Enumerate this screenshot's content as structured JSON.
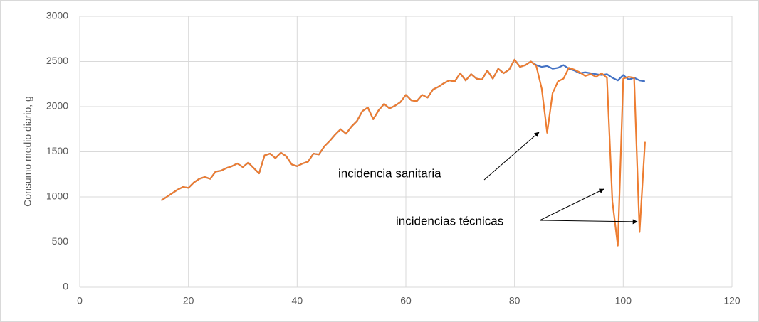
{
  "chart_data": {
    "type": "line",
    "y_label": "Consumo medio diario, g",
    "annotations": [
      "incidencia sanitaria",
      "incidencias técnicas"
    ],
    "x": [
      15,
      16,
      17,
      18,
      19,
      20,
      21,
      22,
      23,
      24,
      25,
      26,
      27,
      28,
      29,
      30,
      31,
      32,
      33,
      34,
      35,
      36,
      37,
      38,
      39,
      40,
      41,
      42,
      43,
      44,
      45,
      46,
      47,
      48,
      49,
      50,
      51,
      52,
      53,
      54,
      55,
      56,
      57,
      58,
      59,
      60,
      61,
      62,
      63,
      64,
      65,
      66,
      67,
      68,
      69,
      70,
      71,
      72,
      73,
      74,
      75,
      76,
      77,
      78,
      79,
      80,
      81,
      82,
      83,
      84,
      85,
      86,
      87,
      88,
      89,
      90,
      91,
      92,
      93,
      94,
      95,
      96,
      97,
      98,
      99,
      100,
      101,
      102,
      103,
      104
    ],
    "series": [
      {
        "color": "#4472c4",
        "values": [
          960,
          1000,
          1040,
          1080,
          1110,
          1100,
          1160,
          1200,
          1220,
          1200,
          1280,
          1290,
          1320,
          1340,
          1370,
          1330,
          1380,
          1320,
          1260,
          1460,
          1480,
          1430,
          1490,
          1450,
          1360,
          1340,
          1370,
          1390,
          1480,
          1470,
          1560,
          1620,
          1690,
          1750,
          1700,
          1780,
          1840,
          1950,
          1990,
          1860,
          1960,
          2030,
          1980,
          2010,
          2050,
          2130,
          2070,
          2060,
          2130,
          2100,
          2190,
          2220,
          2260,
          2290,
          2280,
          2370,
          2290,
          2360,
          2310,
          2300,
          2400,
          2310,
          2420,
          2370,
          2410,
          2520,
          2440,
          2460,
          2500,
          2460,
          2440,
          2450,
          2420,
          2430,
          2460,
          2420,
          2400,
          2370,
          2380,
          2370,
          2360,
          2350,
          2360,
          2320,
          2290,
          2350,
          2300,
          2320,
          2290,
          2280
        ]
      },
      {
        "color": "#ed7d31",
        "values": [
          960,
          1000,
          1040,
          1080,
          1110,
          1100,
          1160,
          1200,
          1220,
          1200,
          1280,
          1290,
          1320,
          1340,
          1370,
          1330,
          1380,
          1320,
          1260,
          1460,
          1480,
          1430,
          1490,
          1450,
          1360,
          1340,
          1370,
          1390,
          1480,
          1470,
          1560,
          1620,
          1690,
          1750,
          1700,
          1780,
          1840,
          1950,
          1990,
          1860,
          1960,
          2030,
          1980,
          2010,
          2050,
          2130,
          2070,
          2060,
          2130,
          2100,
          2190,
          2220,
          2260,
          2290,
          2280,
          2370,
          2290,
          2360,
          2310,
          2300,
          2400,
          2310,
          2420,
          2370,
          2410,
          2520,
          2440,
          2460,
          2500,
          2450,
          2200,
          1710,
          2150,
          2280,
          2310,
          2430,
          2410,
          2380,
          2340,
          2360,
          2330,
          2370,
          2320,
          950,
          460,
          2310,
          2330,
          2320,
          610,
          1610
        ]
      }
    ],
    "xlim": [
      0,
      120
    ],
    "xticks": [
      0,
      20,
      40,
      60,
      80,
      100,
      120
    ],
    "ylim": [
      0,
      3000
    ],
    "yticks": [
      0,
      500,
      1000,
      1500,
      2000,
      2500,
      3000
    ],
    "grid": true
  }
}
